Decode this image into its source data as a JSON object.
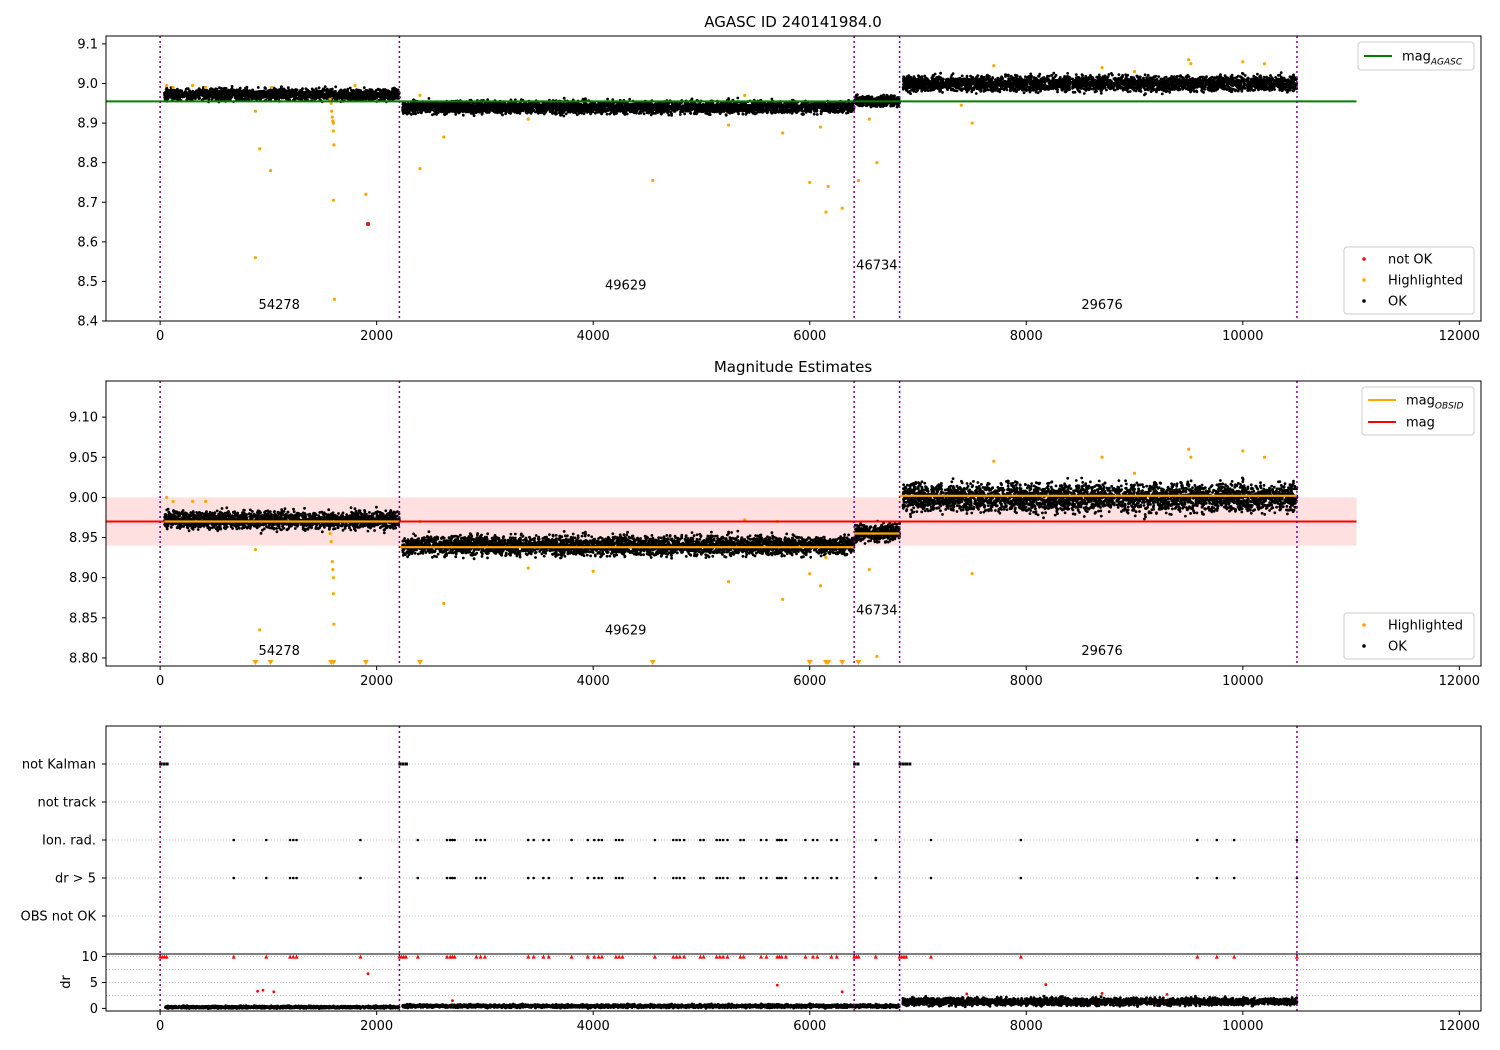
{
  "figure": {
    "background": "#ffffff"
  },
  "colors": {
    "ok": "#000000",
    "highlighted": "#ffa500",
    "not_ok": "#ff0000",
    "mag_agasc": "#008000",
    "mag_obsid": "#ffa500",
    "mag": "#ff0000",
    "mag_band": "#ffcccc",
    "obs_boundary": "#800080",
    "grid": "#b0b0b0"
  },
  "chart_data": [
    {
      "id": "top",
      "type": "scatter",
      "title": "AGASC ID 240141984.0",
      "xlim": [
        -500,
        12200
      ],
      "ylim": [
        8.4,
        9.12
      ],
      "xticks": [
        0,
        2000,
        4000,
        6000,
        8000,
        10000,
        12000
      ],
      "xtick_labels": [
        "0",
        "2000",
        "4000",
        "6000",
        "8000",
        "10000",
        "12000"
      ],
      "yticks": [
        8.4,
        8.5,
        8.6,
        8.7,
        8.8,
        8.9,
        9.0,
        9.1
      ],
      "ytick_labels": [
        "8.4",
        "8.5",
        "8.6",
        "8.7",
        "8.8",
        "8.9",
        "9.0",
        "9.1"
      ],
      "obs_boundaries": [
        0,
        2210,
        6410,
        6830,
        10500
      ],
      "obsid_labels": [
        {
          "text": "54278",
          "x": 1100,
          "y": 8.43
        },
        {
          "text": "49629",
          "x": 4300,
          "y": 8.48
        },
        {
          "text": "46734",
          "x": 6620,
          "y": 8.53
        },
        {
          "text": "29676",
          "x": 8700,
          "y": 8.43
        }
      ],
      "ok_segments": [
        {
          "x0": 40,
          "x1": 2210,
          "center": 8.972,
          "spread": 0.012
        },
        {
          "x0": 2240,
          "x1": 6410,
          "center": 8.94,
          "spread": 0.013
        },
        {
          "x0": 6420,
          "x1": 6830,
          "center": 8.956,
          "spread": 0.012
        },
        {
          "x0": 6860,
          "x1": 10500,
          "center": 9.0,
          "spread": 0.016
        }
      ],
      "highlighted_points": [
        [
          60,
          8.995
        ],
        [
          120,
          8.99
        ],
        [
          300,
          8.995
        ],
        [
          420,
          8.99
        ],
        [
          880,
          8.93
        ],
        [
          920,
          8.835
        ],
        [
          1020,
          8.78
        ],
        [
          1030,
          8.99
        ],
        [
          1570,
          8.96
        ],
        [
          1580,
          8.95
        ],
        [
          1585,
          8.93
        ],
        [
          1590,
          8.915
        ],
        [
          1595,
          8.905
        ],
        [
          1600,
          8.9
        ],
        [
          1600,
          8.88
        ],
        [
          1605,
          8.845
        ],
        [
          1600,
          8.705
        ],
        [
          1610,
          8.455
        ],
        [
          880,
          8.56
        ],
        [
          1900,
          8.72
        ],
        [
          1800,
          8.995
        ],
        [
          2400,
          8.785
        ],
        [
          2400,
          8.97
        ],
        [
          2620,
          8.865
        ],
        [
          3400,
          8.91
        ],
        [
          4550,
          8.755
        ],
        [
          5250,
          8.895
        ],
        [
          5400,
          8.97
        ],
        [
          5750,
          8.875
        ],
        [
          6000,
          8.75
        ],
        [
          6100,
          8.89
        ],
        [
          6150,
          8.675
        ],
        [
          6170,
          8.74
        ],
        [
          6300,
          8.685
        ],
        [
          6450,
          8.755
        ],
        [
          6550,
          8.91
        ],
        [
          6620,
          8.8
        ],
        [
          7400,
          8.945
        ],
        [
          7500,
          8.9
        ],
        [
          7700,
          9.045
        ],
        [
          8700,
          9.04
        ],
        [
          9000,
          9.03
        ],
        [
          9500,
          9.06
        ],
        [
          9520,
          9.05
        ],
        [
          10000,
          9.055
        ],
        [
          10200,
          9.05
        ]
      ],
      "not_ok_points": [
        [
          1920,
          8.645
        ]
      ],
      "lines": [
        {
          "name": "mag_AGASC",
          "y": 8.955,
          "x0": -500,
          "x1": 11050,
          "color": "#008000"
        }
      ],
      "legend_lines": [
        {
          "label_base": "mag",
          "label_sub": "AGASC",
          "color": "#008000"
        }
      ],
      "legend_points": [
        {
          "label": "not OK",
          "color": "#ff0000"
        },
        {
          "label": "Highlighted",
          "color": "#ffa500"
        },
        {
          "label": "OK",
          "color": "#000000"
        }
      ]
    },
    {
      "id": "middle",
      "type": "scatter",
      "title": "Magnitude Estimates",
      "xlim": [
        -500,
        12200
      ],
      "ylim": [
        8.79,
        9.145
      ],
      "xticks": [
        0,
        2000,
        4000,
        6000,
        8000,
        10000,
        12000
      ],
      "xtick_labels": [
        "0",
        "2000",
        "4000",
        "6000",
        "8000",
        "10000",
        "12000"
      ],
      "yticks": [
        8.8,
        8.85,
        8.9,
        8.95,
        9.0,
        9.05,
        9.1
      ],
      "ytick_labels": [
        "8.80",
        "8.85",
        "8.90",
        "8.95",
        "9.00",
        "9.05",
        "9.10"
      ],
      "obs_boundaries": [
        0,
        2210,
        6410,
        6830,
        10500
      ],
      "obsid_labels": [
        {
          "text": "54278",
          "x": 1100,
          "y": 8.804
        },
        {
          "text": "49629",
          "x": 4300,
          "y": 8.829
        },
        {
          "text": "46734",
          "x": 6620,
          "y": 8.854
        },
        {
          "text": "29676",
          "x": 8700,
          "y": 8.804
        }
      ],
      "band": {
        "y0": 8.94,
        "y1": 9.0,
        "x0": -500,
        "x1": 11050
      },
      "ok_segments": [
        {
          "x0": 40,
          "x1": 2210,
          "center": 8.972,
          "spread": 0.009
        },
        {
          "x0": 2240,
          "x1": 6410,
          "center": 8.94,
          "spread": 0.01
        },
        {
          "x0": 6420,
          "x1": 6830,
          "center": 8.956,
          "spread": 0.009
        },
        {
          "x0": 6860,
          "x1": 10500,
          "center": 9.0,
          "spread": 0.015
        }
      ],
      "highlighted_points": [
        [
          60,
          9.0
        ],
        [
          120,
          8.995
        ],
        [
          300,
          8.995
        ],
        [
          420,
          8.995
        ],
        [
          880,
          8.935
        ],
        [
          920,
          8.835
        ],
        [
          1570,
          8.955
        ],
        [
          1580,
          8.945
        ],
        [
          1590,
          8.92
        ],
        [
          1595,
          8.91
        ],
        [
          1600,
          8.9
        ],
        [
          1600,
          8.88
        ],
        [
          1605,
          8.842
        ],
        [
          2620,
          8.868
        ],
        [
          2400,
          8.97
        ],
        [
          3400,
          8.912
        ],
        [
          4000,
          8.908
        ],
        [
          5250,
          8.895
        ],
        [
          5400,
          8.972
        ],
        [
          5750,
          8.873
        ],
        [
          5700,
          8.97
        ],
        [
          6000,
          8.905
        ],
        [
          6100,
          8.89
        ],
        [
          6150,
          8.925
        ],
        [
          6550,
          8.91
        ],
        [
          6620,
          8.802
        ],
        [
          7500,
          8.905
        ],
        [
          7700,
          9.045
        ],
        [
          8700,
          9.05
        ],
        [
          9000,
          9.03
        ],
        [
          9500,
          9.06
        ],
        [
          9520,
          9.05
        ],
        [
          10000,
          9.058
        ],
        [
          10200,
          9.05
        ]
      ],
      "clipped_points_x": [
        880,
        1020,
        1580,
        1600,
        1900,
        2400,
        4550,
        6000,
        6150,
        6170,
        6300,
        6450
      ],
      "lines": [
        {
          "name": "mag",
          "y": 8.97,
          "x0": -500,
          "x1": 11050,
          "color": "#ff0000"
        }
      ],
      "obsid_mag_lines": [
        {
          "x0": 40,
          "x1": 2210,
          "y": 8.97
        },
        {
          "x0": 2210,
          "x1": 6410,
          "y": 8.938
        },
        {
          "x0": 6410,
          "x1": 6830,
          "y": 8.955
        },
        {
          "x0": 6830,
          "x1": 10500,
          "y": 9.002
        }
      ],
      "legend_lines": [
        {
          "label_base": "mag",
          "label_sub": "OBSID",
          "color": "#ffa500"
        },
        {
          "label_base": "mag",
          "label_sub": "",
          "color": "#ff0000"
        }
      ],
      "legend_points": [
        {
          "label": "Highlighted",
          "color": "#ffa500"
        },
        {
          "label": "OK",
          "color": "#000000"
        }
      ]
    },
    {
      "id": "flags",
      "type": "scatter",
      "xlim": [
        -500,
        12200
      ],
      "flag_rows": [
        "not Kalman",
        "not track",
        "Ion. rad.",
        "dr > 5",
        "OBS not OK"
      ],
      "obs_boundaries": [
        0,
        2210,
        6410,
        6830,
        10500
      ],
      "not_kalman_x": [
        0,
        30,
        60,
        2210,
        2240,
        2270,
        6410,
        6440,
        6830,
        6860,
        6890,
        6920
      ],
      "event_x": [
        680,
        980,
        1200,
        1230,
        1260,
        1850,
        2380,
        2650,
        2680,
        2700,
        2720,
        2920,
        2960,
        3000,
        3400,
        3450,
        3540,
        3590,
        3800,
        3950,
        4010,
        4050,
        4080,
        4210,
        4240,
        4270,
        4570,
        4740,
        4770,
        4800,
        4840,
        4990,
        5020,
        5140,
        5170,
        5200,
        5240,
        5360,
        5390,
        5550,
        5600,
        5700,
        5720,
        5740,
        5780,
        5960,
        6030,
        6070,
        6200,
        6250,
        6610,
        7120,
        7950,
        9580,
        9760,
        9920,
        10500
      ]
    },
    {
      "id": "dr",
      "type": "scatter",
      "ylabel": "dr",
      "xlim": [
        -500,
        12200
      ],
      "ylim": [
        -0.5,
        10.5
      ],
      "xticks": [
        0,
        2000,
        4000,
        6000,
        8000,
        10000,
        12000
      ],
      "xtick_labels": [
        "0",
        "2000",
        "4000",
        "6000",
        "8000",
        "10000",
        "12000"
      ],
      "yticks": [
        0,
        5,
        10
      ],
      "ytick_labels": [
        "0",
        "5",
        "10"
      ],
      "obs_boundaries": [
        0,
        2210,
        6410,
        6830,
        10500
      ],
      "ok_segments": [
        {
          "x0": 40,
          "x1": 2210,
          "center": 0.25,
          "spread": 0.18
        },
        {
          "x0": 2240,
          "x1": 6410,
          "center": 0.45,
          "spread": 0.25
        },
        {
          "x0": 6420,
          "x1": 6830,
          "center": 0.45,
          "spread": 0.25
        },
        {
          "x0": 6860,
          "x1": 10500,
          "center": 1.3,
          "spread": 0.6
        }
      ],
      "capped_points_x": [
        0,
        20,
        40,
        60,
        680,
        980,
        1200,
        1230,
        1260,
        1850,
        2210,
        2230,
        2250,
        2270,
        2380,
        2650,
        2680,
        2700,
        2720,
        2920,
        2960,
        3000,
        3400,
        3450,
        3540,
        3590,
        3800,
        3950,
        4010,
        4050,
        4080,
        4210,
        4240,
        4270,
        4570,
        4740,
        4770,
        4800,
        4840,
        4990,
        5020,
        5140,
        5170,
        5200,
        5240,
        5360,
        5390,
        5550,
        5600,
        5700,
        5720,
        5740,
        5780,
        5960,
        6030,
        6070,
        6200,
        6250,
        6410,
        6430,
        6450,
        6610,
        6830,
        6850,
        6870,
        6890,
        7120,
        7950,
        9580,
        9760,
        9920,
        10500
      ],
      "red_points": [
        [
          1920,
          6.7
        ],
        [
          900,
          3.3
        ],
        [
          950,
          3.5
        ],
        [
          1050,
          3.2
        ],
        [
          5700,
          4.5
        ],
        [
          6300,
          3.2
        ],
        [
          7450,
          2.8
        ],
        [
          8180,
          4.6
        ],
        [
          8700,
          2.9
        ],
        [
          9300,
          2.7
        ],
        [
          2700,
          1.5
        ]
      ]
    }
  ]
}
